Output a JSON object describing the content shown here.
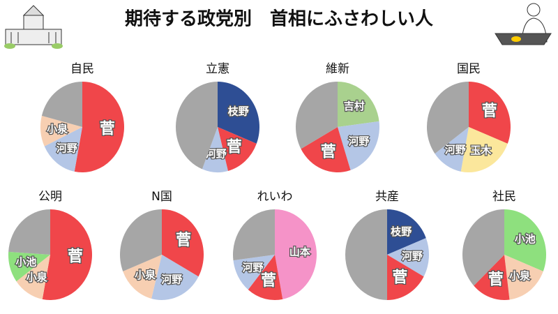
{
  "title": "期待する政党別　首相にふさわしい人",
  "chart_data": [
    {
      "type": "pie",
      "title": "自民",
      "categories": [
        "菅",
        "河野",
        "小泉",
        null
      ],
      "values": [
        53,
        15,
        11,
        21
      ],
      "colors": [
        "#f0464a",
        "#b4c6e6",
        "#f7cfb2",
        "#a6a6a6"
      ]
    },
    {
      "type": "pie",
      "title": "立憲",
      "categories": [
        "枝野",
        "菅",
        "河野",
        null
      ],
      "values": [
        31,
        15,
        10,
        44
      ],
      "colors": [
        "#2e4e94",
        "#f0464a",
        "#b4c6e6",
        "#a6a6a6"
      ]
    },
    {
      "type": "pie",
      "title": "維新",
      "categories": [
        "吉村",
        "河野",
        "菅",
        null
      ],
      "values": [
        23,
        22,
        22,
        33
      ],
      "colors": [
        "#a9d18e",
        "#b4c6e6",
        "#f0464a",
        "#a6a6a6"
      ]
    },
    {
      "type": "pie",
      "title": "国民",
      "categories": [
        "菅",
        "玉木",
        "河野",
        null
      ],
      "values": [
        31,
        22,
        12,
        35
      ],
      "colors": [
        "#f0464a",
        "#fbe79c",
        "#b4c6e6",
        "#a6a6a6"
      ]
    },
    {
      "type": "pie",
      "title": "公明",
      "categories": [
        "菅",
        "小泉",
        "小池",
        null
      ],
      "values": [
        53,
        12,
        11,
        24
      ],
      "colors": [
        "#f0464a",
        "#f7cfb2",
        "#8ee07e",
        "#a6a6a6"
      ]
    },
    {
      "type": "pie",
      "title": "N国",
      "categories": [
        "菅",
        "河野",
        "小泉",
        null
      ],
      "values": [
        33,
        21,
        15,
        31
      ],
      "colors": [
        "#f0464a",
        "#b4c6e6",
        "#f7cfb2",
        "#a6a6a6"
      ]
    },
    {
      "type": "pie",
      "title": "れいわ",
      "categories": [
        "山本",
        "菅",
        "河野",
        null
      ],
      "values": [
        47,
        14,
        12,
        27
      ],
      "colors": [
        "#f593c8",
        "#f0464a",
        "#b4c6e6",
        "#a6a6a6"
      ]
    },
    {
      "type": "pie",
      "title": "共産",
      "categories": [
        "枝野",
        "河野",
        "菅",
        null
      ],
      "values": [
        19,
        14,
        17,
        50
      ],
      "colors": [
        "#2e4e94",
        "#b4c6e6",
        "#f0464a",
        "#a6a6a6"
      ]
    },
    {
      "type": "pie",
      "title": "社民",
      "categories": [
        "小池",
        "小泉",
        "菅",
        null
      ],
      "values": [
        31,
        17,
        15,
        37
      ],
      "colors": [
        "#8ee07e",
        "#f7cfb2",
        "#f0464a",
        "#a6a6a6"
      ]
    }
  ]
}
